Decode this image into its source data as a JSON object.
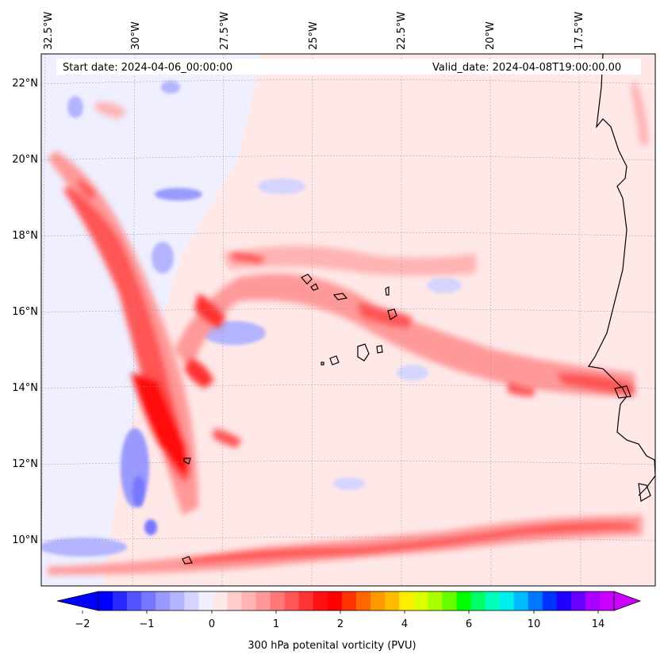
{
  "map": {
    "start_date": "Start date: 2024-04-06_00:00:00",
    "valid_date": "Valid_date: 2024-04-08T19:00:00.00",
    "lon_labels": [
      "32.5°W",
      "30°W",
      "27.5°W",
      "25°W",
      "22.5°W",
      "20°W",
      "17.5°W"
    ],
    "lat_labels": [
      "22°N",
      "20°N",
      "18°N",
      "16°N",
      "14°N",
      "12°N",
      "10°N"
    ],
    "colorbar": {
      "label": "300 hPa potenital vorticity (PVU)",
      "ticks": [
        "−2",
        "−1",
        "0",
        "1",
        "2",
        "4",
        "6",
        "10",
        "14"
      ],
      "colors": [
        "#0000ff",
        "#2a2aff",
        "#5555ff",
        "#7777ff",
        "#9999ff",
        "#b3b3ff",
        "#d4d4ff",
        "#efefff",
        "#ffe8e8",
        "#ffcccc",
        "#ffb3b3",
        "#ff9999",
        "#ff7777",
        "#ff5555",
        "#ff3333",
        "#ff1111",
        "#ff0000",
        "#ff3300",
        "#ff6600",
        "#ff9900",
        "#ffbb00",
        "#ffee00",
        "#ddff00",
        "#aaff00",
        "#66ff00",
        "#00ff00",
        "#00ff66",
        "#00ffbb",
        "#00eeee",
        "#00bbff",
        "#0077ff",
        "#0033ff",
        "#2200ff",
        "#6600ff",
        "#aa00ff",
        "#cc00ff"
      ],
      "under_color": "#0000ff",
      "over_color": "#cc00ff"
    }
  }
}
